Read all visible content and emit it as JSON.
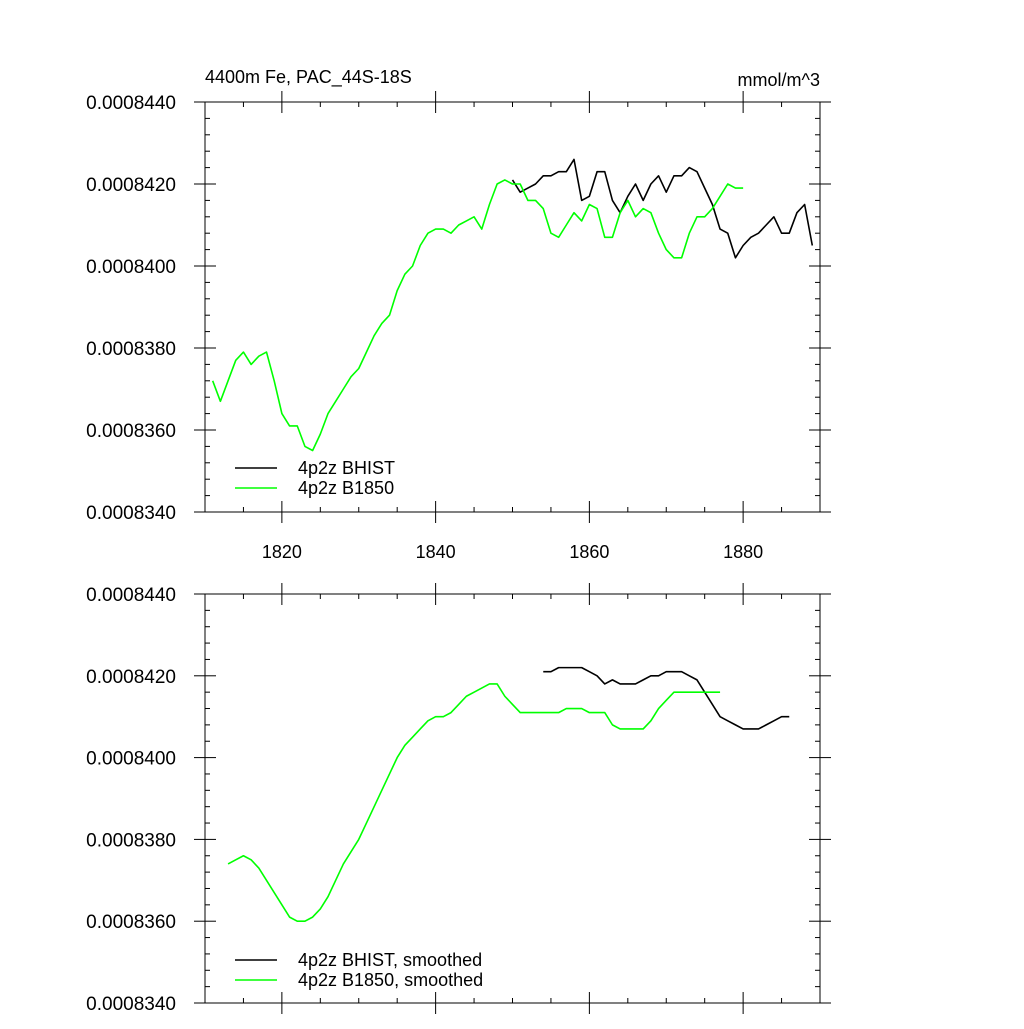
{
  "chart_data": [
    {
      "type": "line",
      "title": "4400m Fe, PAC_44S-18S",
      "units": "mmol/m^3",
      "xlim": [
        1810,
        1890
      ],
      "ylim": [
        0.000834,
        0.000844
      ],
      "x_ticks": [
        1820,
        1840,
        1860,
        1880
      ],
      "x_tick_labels": [
        "1820",
        "1840",
        "1860",
        "1880"
      ],
      "y_ticks": [
        0.000834,
        0.000836,
        0.000838,
        0.00084,
        0.000842,
        0.000844
      ],
      "y_tick_labels": [
        "0.0008340",
        "0.0008360",
        "0.0008380",
        "0.0008400",
        "0.0008420",
        "0.0008440"
      ],
      "show_x_tick_labels": true,
      "legend": {
        "placement": "bottom-left"
      },
      "series": [
        {
          "name": "4p2z BHIST",
          "color": "#000000",
          "x": [
            1850,
            1851,
            1852,
            1853,
            1854,
            1855,
            1856,
            1857,
            1858,
            1859,
            1860,
            1861,
            1862,
            1863,
            1864,
            1865,
            1866,
            1867,
            1868,
            1869,
            1870,
            1871,
            1872,
            1873,
            1874,
            1875,
            1876,
            1877,
            1878,
            1879,
            1880,
            1881,
            1882,
            1883,
            1884,
            1885,
            1886,
            1887,
            1888,
            1889
          ],
          "y": [
            0.0008421,
            0.0008418,
            0.0008419,
            0.000842,
            0.0008422,
            0.0008422,
            0.0008423,
            0.0008423,
            0.0008426,
            0.0008416,
            0.0008417,
            0.0008423,
            0.0008423,
            0.0008416,
            0.0008413,
            0.0008417,
            0.000842,
            0.0008416,
            0.000842,
            0.0008422,
            0.0008418,
            0.0008422,
            0.0008422,
            0.0008424,
            0.0008423,
            0.0008419,
            0.0008415,
            0.0008409,
            0.0008408,
            0.0008402,
            0.0008405,
            0.0008407,
            0.0008408,
            0.000841,
            0.0008412,
            0.0008408,
            0.0008408,
            0.0008413,
            0.0008415,
            0.0008405
          ]
        },
        {
          "name": "4p2z B1850",
          "color": "#00ff00",
          "x": [
            1811,
            1812,
            1813,
            1814,
            1815,
            1816,
            1817,
            1818,
            1819,
            1820,
            1821,
            1822,
            1823,
            1824,
            1825,
            1826,
            1827,
            1828,
            1829,
            1830,
            1831,
            1832,
            1833,
            1834,
            1835,
            1836,
            1837,
            1838,
            1839,
            1840,
            1841,
            1842,
            1843,
            1844,
            1845,
            1846,
            1847,
            1848,
            1849,
            1850,
            1851,
            1852,
            1853,
            1854,
            1855,
            1856,
            1857,
            1858,
            1859,
            1860,
            1861,
            1862,
            1863,
            1864,
            1865,
            1866,
            1867,
            1868,
            1869,
            1870,
            1871,
            1872,
            1873,
            1874,
            1875,
            1876,
            1877,
            1878,
            1879,
            1880
          ],
          "y": [
            0.0008372,
            0.0008367,
            0.0008372,
            0.0008377,
            0.0008379,
            0.0008376,
            0.0008378,
            0.0008379,
            0.0008372,
            0.0008364,
            0.0008361,
            0.0008361,
            0.0008356,
            0.0008355,
            0.0008359,
            0.0008364,
            0.0008367,
            0.000837,
            0.0008373,
            0.0008375,
            0.0008379,
            0.0008383,
            0.0008386,
            0.0008388,
            0.0008394,
            0.0008398,
            0.00084,
            0.0008405,
            0.0008408,
            0.0008409,
            0.0008409,
            0.0008408,
            0.000841,
            0.0008411,
            0.0008412,
            0.0008409,
            0.0008415,
            0.000842,
            0.0008421,
            0.000842,
            0.000842,
            0.0008416,
            0.0008416,
            0.0008414,
            0.0008408,
            0.0008407,
            0.000841,
            0.0008413,
            0.0008411,
            0.0008415,
            0.0008414,
            0.0008407,
            0.0008407,
            0.0008413,
            0.0008416,
            0.0008412,
            0.0008414,
            0.0008413,
            0.0008408,
            0.0008404,
            0.0008402,
            0.0008402,
            0.0008408,
            0.0008412,
            0.0008412,
            0.0008414,
            0.0008417,
            0.000842,
            0.0008419,
            0.0008419
          ]
        }
      ]
    },
    {
      "type": "line",
      "title": "",
      "units": "",
      "xlim": [
        1810,
        1890
      ],
      "ylim": [
        0.000834,
        0.000844
      ],
      "x_ticks": [
        1820,
        1840,
        1860,
        1880
      ],
      "x_tick_labels": [],
      "y_ticks": [
        0.000834,
        0.000836,
        0.000838,
        0.00084,
        0.000842,
        0.000844
      ],
      "y_tick_labels": [
        "0.0008340",
        "0.0008360",
        "0.0008380",
        "0.0008400",
        "0.0008420",
        "0.0008440"
      ],
      "show_x_tick_labels": false,
      "legend": {
        "placement": "bottom-left"
      },
      "series": [
        {
          "name": "4p2z BHIST, smoothed",
          "color": "#000000",
          "x": [
            1854,
            1855,
            1856,
            1857,
            1858,
            1859,
            1860,
            1861,
            1862,
            1863,
            1864,
            1865,
            1866,
            1867,
            1868,
            1869,
            1870,
            1871,
            1872,
            1873,
            1874,
            1875,
            1876,
            1877,
            1878,
            1879,
            1880,
            1881,
            1882,
            1883,
            1884,
            1885,
            1886
          ],
          "y": [
            0.0008421,
            0.0008421,
            0.0008422,
            0.0008422,
            0.0008422,
            0.0008422,
            0.0008421,
            0.000842,
            0.0008418,
            0.0008419,
            0.0008418,
            0.0008418,
            0.0008418,
            0.0008419,
            0.000842,
            0.000842,
            0.0008421,
            0.0008421,
            0.0008421,
            0.000842,
            0.0008419,
            0.0008416,
            0.0008413,
            0.000841,
            0.0008409,
            0.0008408,
            0.0008407,
            0.0008407,
            0.0008407,
            0.0008408,
            0.0008409,
            0.000841,
            0.000841
          ]
        },
        {
          "name": "4p2z B1850, smoothed",
          "color": "#00ff00",
          "x": [
            1813,
            1814,
            1815,
            1816,
            1817,
            1818,
            1819,
            1820,
            1821,
            1822,
            1823,
            1824,
            1825,
            1826,
            1827,
            1828,
            1829,
            1830,
            1831,
            1832,
            1833,
            1834,
            1835,
            1836,
            1837,
            1838,
            1839,
            1840,
            1841,
            1842,
            1843,
            1844,
            1845,
            1846,
            1847,
            1848,
            1849,
            1850,
            1851,
            1852,
            1853,
            1854,
            1855,
            1856,
            1857,
            1858,
            1859,
            1860,
            1861,
            1862,
            1863,
            1864,
            1865,
            1866,
            1867,
            1868,
            1869,
            1870,
            1871,
            1872,
            1873,
            1874,
            1875,
            1876,
            1877
          ],
          "y": [
            0.0008374,
            0.0008375,
            0.0008376,
            0.0008375,
            0.0008373,
            0.000837,
            0.0008367,
            0.0008364,
            0.0008361,
            0.000836,
            0.000836,
            0.0008361,
            0.0008363,
            0.0008366,
            0.000837,
            0.0008374,
            0.0008377,
            0.000838,
            0.0008384,
            0.0008388,
            0.0008392,
            0.0008396,
            0.00084,
            0.0008403,
            0.0008405,
            0.0008407,
            0.0008409,
            0.000841,
            0.000841,
            0.0008411,
            0.0008413,
            0.0008415,
            0.0008416,
            0.0008417,
            0.0008418,
            0.0008418,
            0.0008415,
            0.0008413,
            0.0008411,
            0.0008411,
            0.0008411,
            0.0008411,
            0.0008411,
            0.0008411,
            0.0008412,
            0.0008412,
            0.0008412,
            0.0008411,
            0.0008411,
            0.0008411,
            0.0008408,
            0.0008407,
            0.0008407,
            0.0008407,
            0.0008407,
            0.0008409,
            0.0008412,
            0.0008414,
            0.0008416,
            0.0008416,
            0.0008416,
            0.0008416,
            0.0008416,
            0.0008416,
            0.0008416
          ]
        }
      ]
    }
  ]
}
